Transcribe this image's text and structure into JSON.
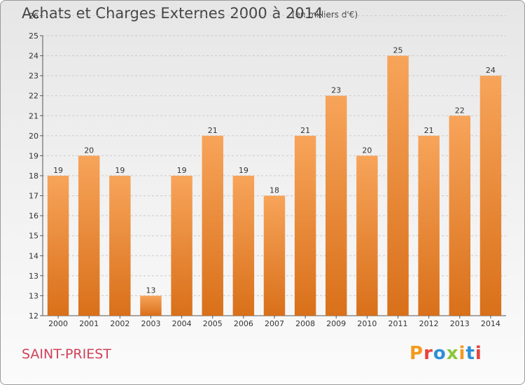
{
  "header": {
    "title": "Achats et Charges Externes 2000 à 2014",
    "subtitle": "(en milliers d'€)"
  },
  "footer": {
    "commune": "SAINT-PRIEST",
    "logo_text": "Proxiti",
    "logo_colors": [
      "#f29a1f",
      "#e8423c",
      "#2d8fd6",
      "#8dc63f",
      "#f29a1f",
      "#2d8fd6",
      "#e8423c"
    ]
  },
  "chart_data": {
    "type": "bar",
    "categories": [
      "2000",
      "2001",
      "2002",
      "2003",
      "2004",
      "2005",
      "2006",
      "2007",
      "2008",
      "2009",
      "2010",
      "2011",
      "2012",
      "2013",
      "2014"
    ],
    "values": [
      19,
      20,
      19,
      13,
      19,
      21,
      19,
      18,
      21,
      23,
      20,
      25,
      21,
      22,
      24
    ],
    "data_labels": [
      "19",
      "20",
      "19",
      "13",
      "19",
      "21",
      "19",
      "18",
      "21",
      "23",
      "20",
      "25",
      "21",
      "22",
      "24"
    ],
    "title": "Achats et Charges Externes 2000 à 2014",
    "unit": "(en milliers d'€)",
    "ylim": [
      12,
      26
    ],
    "yticks": [
      "12",
      "13",
      "13",
      "14",
      "15",
      "16",
      "17",
      "18",
      "19",
      "20",
      "21",
      "22",
      "23",
      "24",
      "25",
      "26"
    ],
    "grid": true,
    "bar_color_top": "#f7a45a",
    "bar_color_bottom": "#d9701a"
  }
}
